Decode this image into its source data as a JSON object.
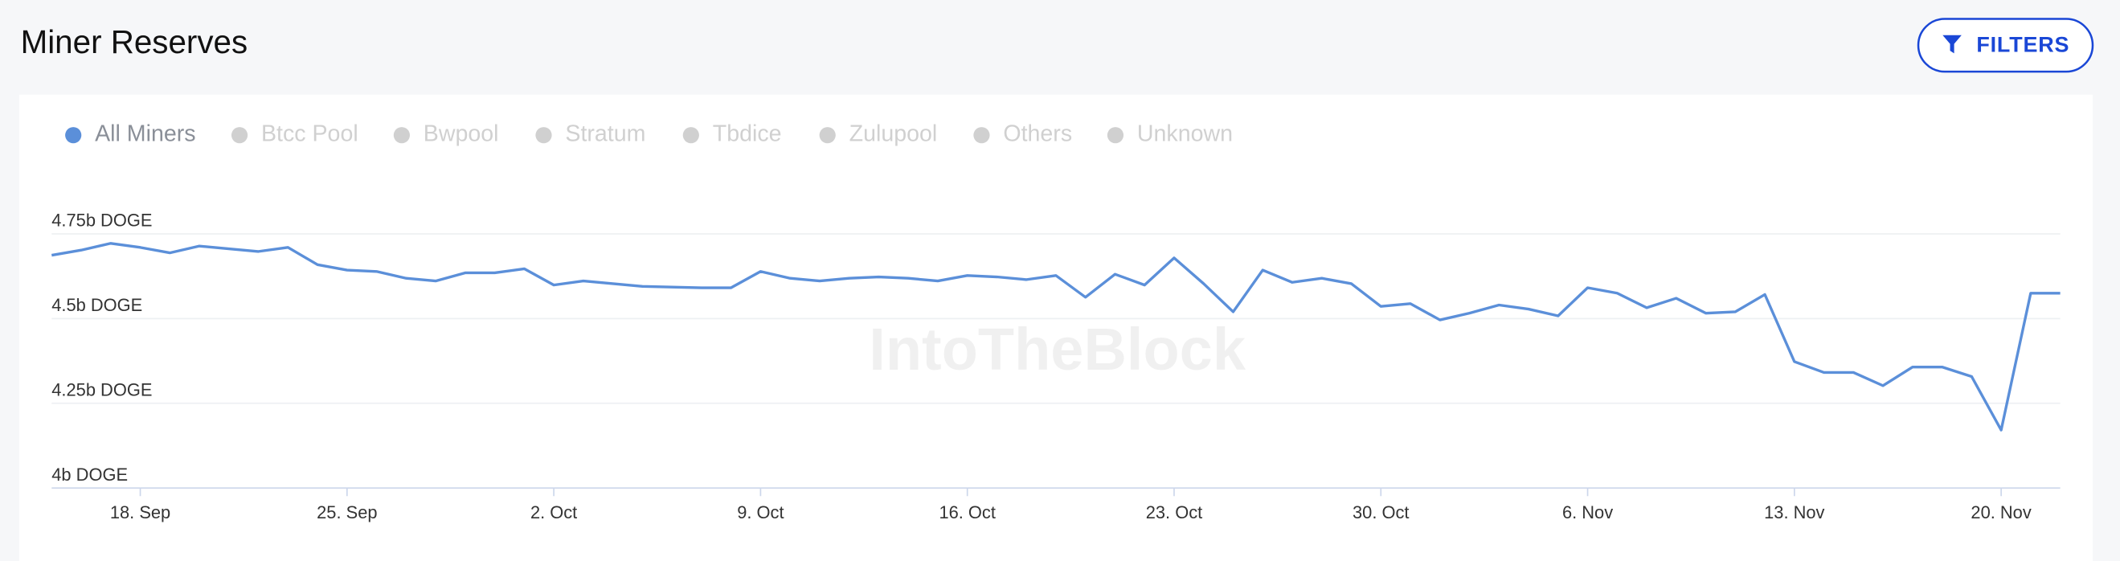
{
  "header": {
    "title": "Miner Reserves",
    "filters_button": "FILTERS"
  },
  "chart_data": {
    "type": "line",
    "watermark": "IntoTheBlock",
    "categories": [
      null,
      null,
      null,
      "18. Sep",
      null,
      null,
      null,
      null,
      null,
      null,
      "25. Sep",
      null,
      null,
      null,
      null,
      null,
      null,
      "2. Oct",
      null,
      null,
      null,
      null,
      null,
      null,
      "9. Oct",
      null,
      null,
      null,
      null,
      null,
      null,
      "16. Oct",
      null,
      null,
      null,
      null,
      null,
      null,
      "23. Oct",
      null,
      null,
      null,
      null,
      null,
      null,
      "30. Oct",
      null,
      null,
      null,
      null,
      null,
      null,
      "6. Nov",
      null,
      null,
      null,
      null,
      null,
      null,
      "13. Nov",
      null,
      null,
      null,
      null,
      null,
      null,
      "20. Nov",
      null,
      null
    ],
    "series": [
      {
        "name": "All Miners",
        "color": "#5b8fd9",
        "values": [
          4.687,
          4.702,
          4.722,
          4.71,
          4.694,
          4.714,
          4.706,
          4.698,
          4.71,
          4.659,
          4.643,
          4.639,
          4.619,
          4.611,
          4.635,
          4.635,
          4.647,
          4.599,
          4.611,
          4.603,
          4.595,
          4.593,
          4.591,
          4.591,
          4.639,
          4.619,
          4.611,
          4.619,
          4.623,
          4.619,
          4.611,
          4.627,
          4.623,
          4.615,
          4.627,
          4.563,
          4.631,
          4.599,
          4.679,
          4.603,
          4.52,
          4.643,
          4.607,
          4.619,
          4.603,
          4.536,
          4.544,
          4.496,
          4.516,
          4.54,
          4.528,
          4.508,
          4.591,
          4.575,
          4.532,
          4.56,
          4.516,
          4.52,
          4.571,
          4.373,
          4.341,
          4.341,
          4.302,
          4.357,
          4.357,
          4.329,
          4.171,
          4.575,
          4.575
        ]
      }
    ],
    "inactive_legend": [
      "Btcc Pool",
      "Bwpool",
      "Stratum",
      "Tbdice",
      "Zulupool",
      "Others",
      "Unknown"
    ],
    "inactive_color": "#d0d0d0",
    "ylim": [
      4,
      4.75
    ],
    "yticks": [
      {
        "value": 4,
        "label": "4b DOGE"
      },
      {
        "value": 4.25,
        "label": "4.25b DOGE"
      },
      {
        "value": 4.5,
        "label": "4.5b DOGE"
      },
      {
        "value": 4.75,
        "label": "4.75b DOGE"
      }
    ],
    "grid": true
  }
}
